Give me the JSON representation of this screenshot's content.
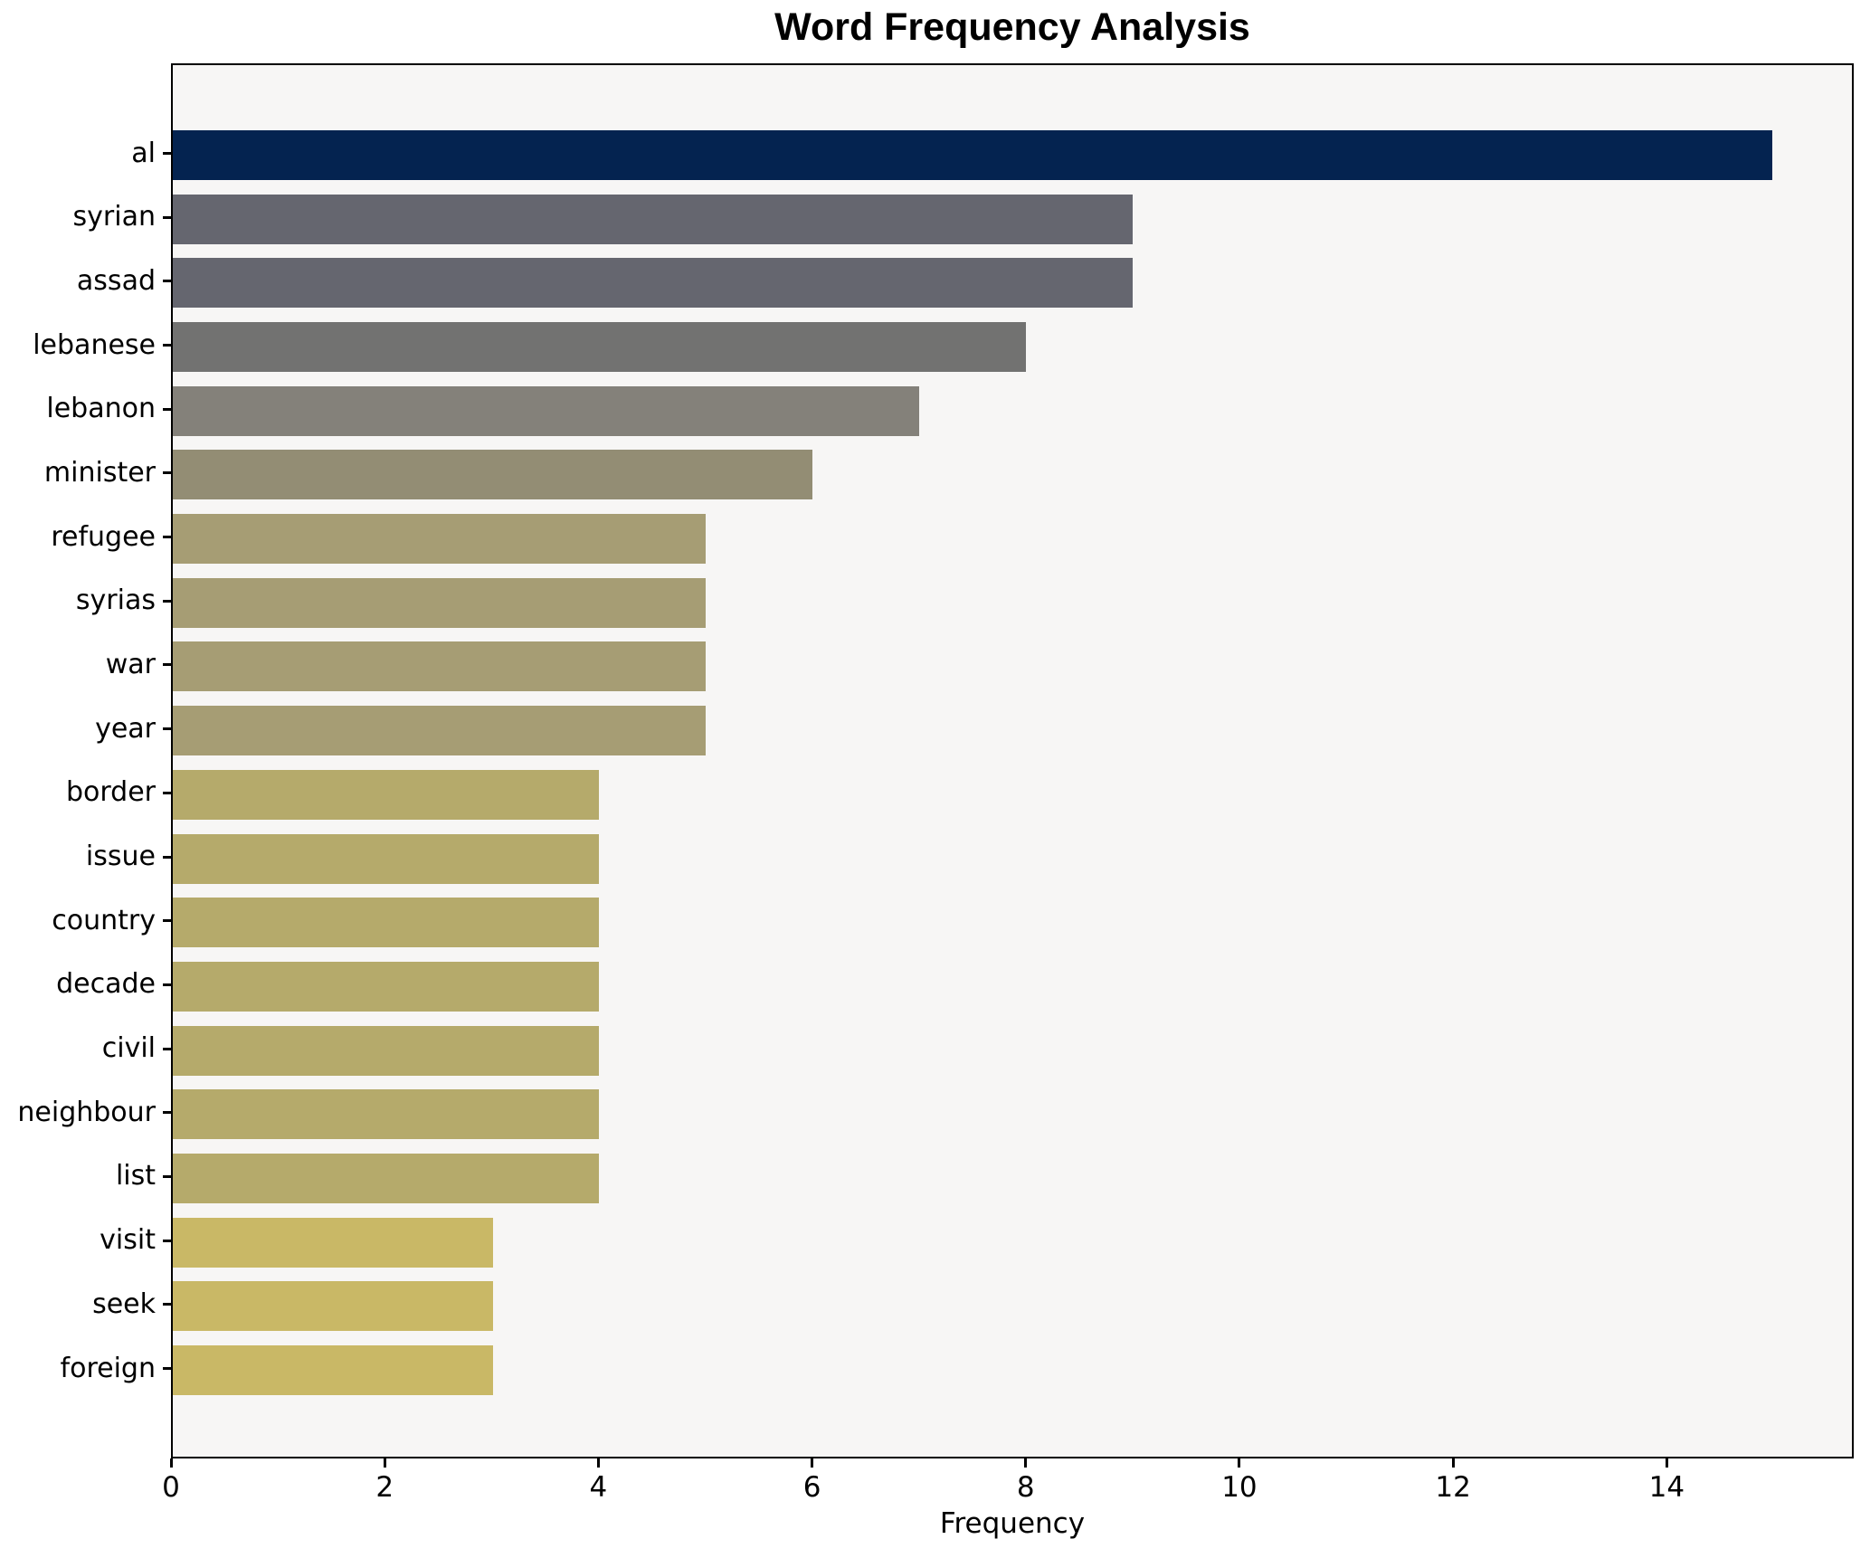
{
  "chart_data": {
    "type": "bar",
    "orientation": "horizontal",
    "title": "Word Frequency Analysis",
    "xlabel": "Frequency",
    "ylabel": "",
    "categories": [
      "al",
      "syrian",
      "assad",
      "lebanese",
      "lebanon",
      "minister",
      "refugee",
      "syrias",
      "war",
      "year",
      "border",
      "issue",
      "country",
      "decade",
      "civil",
      "neighbour",
      "list",
      "visit",
      "seek",
      "foreign"
    ],
    "values": [
      15,
      9,
      9,
      8,
      7,
      6,
      5,
      5,
      5,
      5,
      4,
      4,
      4,
      4,
      4,
      4,
      4,
      3,
      3,
      3
    ],
    "bar_colors": [
      "#042350",
      "#65666f",
      "#65666f",
      "#727271",
      "#84817a",
      "#938d74",
      "#a69d74",
      "#a69d74",
      "#a69d74",
      "#a69d74",
      "#b5aa6b",
      "#b5aa6b",
      "#b5aa6b",
      "#b5aa6b",
      "#b5aa6b",
      "#b5aa6b",
      "#b5aa6b",
      "#c9b866",
      "#c9b866",
      "#c9b866"
    ],
    "xticks": [
      "0",
      "2",
      "4",
      "6",
      "8",
      "10",
      "12",
      "14"
    ],
    "xtick_values": [
      0,
      2,
      4,
      6,
      8,
      10,
      12,
      14
    ],
    "xlim": [
      0,
      15.75
    ],
    "grid": false,
    "legend": null,
    "colors": {
      "plot_background": "#f7f6f5",
      "figure_background": "#ffffff",
      "frame": "#000000",
      "text": "#000000"
    }
  }
}
